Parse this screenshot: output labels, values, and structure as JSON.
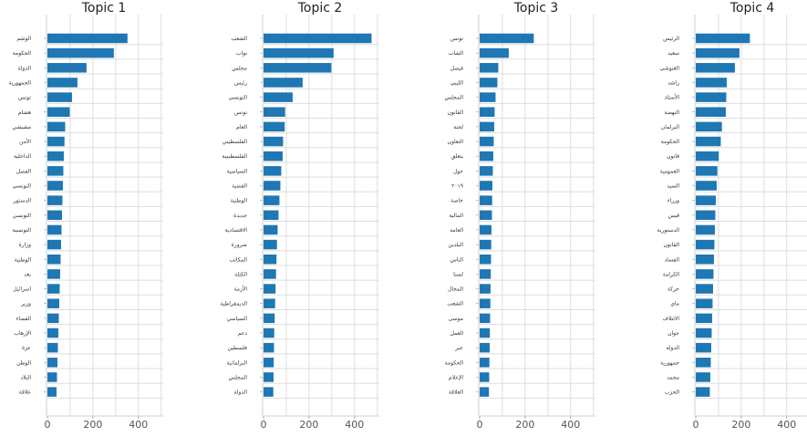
{
  "chart_data": [
    {
      "type": "bar",
      "orientation": "horizontal",
      "title": "Topic 1",
      "xlim": [
        0,
        500
      ],
      "xticks": [
        "0",
        "200",
        "400"
      ],
      "grid": true,
      "categories": [
        "الوشم",
        "الحكومة",
        "الدولة",
        "الجمهورية",
        "تونس",
        "هشام",
        "مشيشي",
        "الأمن",
        "الداخلية",
        "الفصل",
        "التونسي",
        "الدستور",
        "التونسي",
        "التونسية",
        "وزارة",
        "الوطنية",
        "بعد",
        "اسرائيل",
        "وزير",
        "القضاء",
        "الإرهاب",
        "عزة",
        "الوطن",
        "البلاد",
        "علاقة"
      ],
      "values": [
        352,
        292,
        172,
        132,
        108,
        98,
        78,
        75,
        72,
        70,
        68,
        66,
        64,
        62,
        60,
        58,
        56,
        54,
        52,
        50,
        48,
        46,
        44,
        42,
        40
      ]
    },
    {
      "type": "bar",
      "orientation": "horizontal",
      "title": "Topic 2",
      "xlim": [
        0,
        500
      ],
      "xticks": [
        "0",
        "200",
        "400"
      ],
      "grid": true,
      "categories": [
        "الشعب",
        "نواب",
        "مجلس",
        "رئيس",
        "التونسي",
        "تونس",
        "العام",
        "الفلسطيني",
        "الفلسطينية",
        "السياسية",
        "القضية",
        "الوطنية",
        "جديدة",
        "الاقتصادية",
        "ضرورة",
        "المكاتب",
        "الكتلة",
        "الأزمة",
        "الديمقراطية",
        "السياسي",
        "دعم",
        "فلسطين",
        "البرلمانية",
        "المجلس",
        "الدولة"
      ],
      "values": [
        475,
        308,
        298,
        172,
        128,
        95,
        93,
        86,
        84,
        78,
        74,
        70,
        66,
        62,
        59,
        57,
        55,
        53,
        51,
        49,
        47,
        46,
        45,
        44,
        43
      ]
    },
    {
      "type": "bar",
      "orientation": "horizontal",
      "title": "Topic 3",
      "xlim": [
        0,
        500
      ],
      "xticks": [
        "0",
        "200",
        "400"
      ],
      "grid": true,
      "categories": [
        "تونس",
        "الشاب",
        "فيصل",
        "الليبي",
        "المجلس",
        "القانون",
        "لجنة",
        "التعاون",
        "يتعلق",
        "حول",
        "٢٠١٩",
        "خاصة",
        "المالية",
        "العامة",
        "البلدين",
        "الناس",
        "لسنا",
        "المجال",
        "الشعب",
        "موسى",
        "العمل",
        "عبر",
        "الحكومة",
        "الإعلام",
        "العلاقة"
      ],
      "values": [
        238,
        128,
        82,
        78,
        70,
        66,
        64,
        62,
        60,
        58,
        56,
        55,
        54,
        52,
        51,
        50,
        49,
        48,
        47,
        46,
        45,
        44,
        43,
        42,
        41
      ]
    },
    {
      "type": "bar",
      "orientation": "horizontal",
      "title": "Topic 4",
      "xlim": [
        0,
        500
      ],
      "xticks": [
        "0",
        "200",
        "400"
      ],
      "grid": true,
      "categories": [
        "الرئيس",
        "سعيد",
        "الغنوشي",
        "راشد",
        "الأستاذ",
        "النهضة",
        "البرلمان",
        "الحكومة",
        "قانون",
        "العمومية",
        "السيد",
        "وزراء",
        "قيس",
        "الدستورية",
        "القانون",
        "الفساد",
        "الكرامة",
        "حركة",
        "ماي",
        "الائتلاف",
        "جوان",
        "الدولة",
        "جمهورية",
        "مجمد",
        "الحزب"
      ],
      "values": [
        238,
        192,
        172,
        136,
        134,
        132,
        115,
        110,
        101,
        95,
        92,
        88,
        86,
        84,
        82,
        80,
        78,
        76,
        74,
        72,
        70,
        68,
        66,
        64,
        62
      ]
    }
  ]
}
